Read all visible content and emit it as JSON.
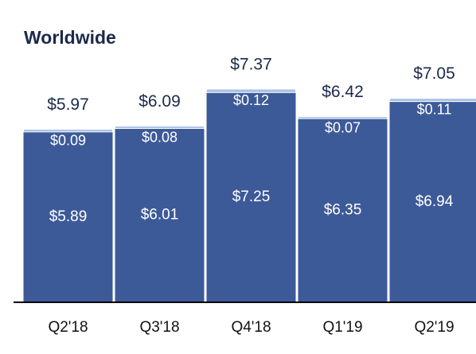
{
  "chart_data": {
    "type": "stacked-bar",
    "title": "Worldwide",
    "categories": [
      "Q2'18",
      "Q3'18",
      "Q4'18",
      "Q1'19",
      "Q2'19"
    ],
    "series": [
      {
        "color": "#3d5a98",
        "values": [
          5.89,
          6.01,
          7.25,
          6.35,
          6.94
        ],
        "value_labels": [
          "$5.89",
          "$6.01",
          "$7.25",
          "$6.35",
          "$6.94"
        ]
      },
      {
        "color": "#a8c2e6",
        "values": [
          0.09,
          0.08,
          0.12,
          0.07,
          0.11
        ],
        "value_labels": [
          "$0.09",
          "$0.08",
          "$0.12",
          "$0.07",
          "$0.11"
        ]
      }
    ],
    "totals": {
      "values": [
        5.97,
        6.09,
        7.37,
        6.42,
        7.05
      ],
      "value_labels": [
        "$5.97",
        "$6.09",
        "$7.37",
        "$6.42",
        "$7.05"
      ]
    }
  }
}
